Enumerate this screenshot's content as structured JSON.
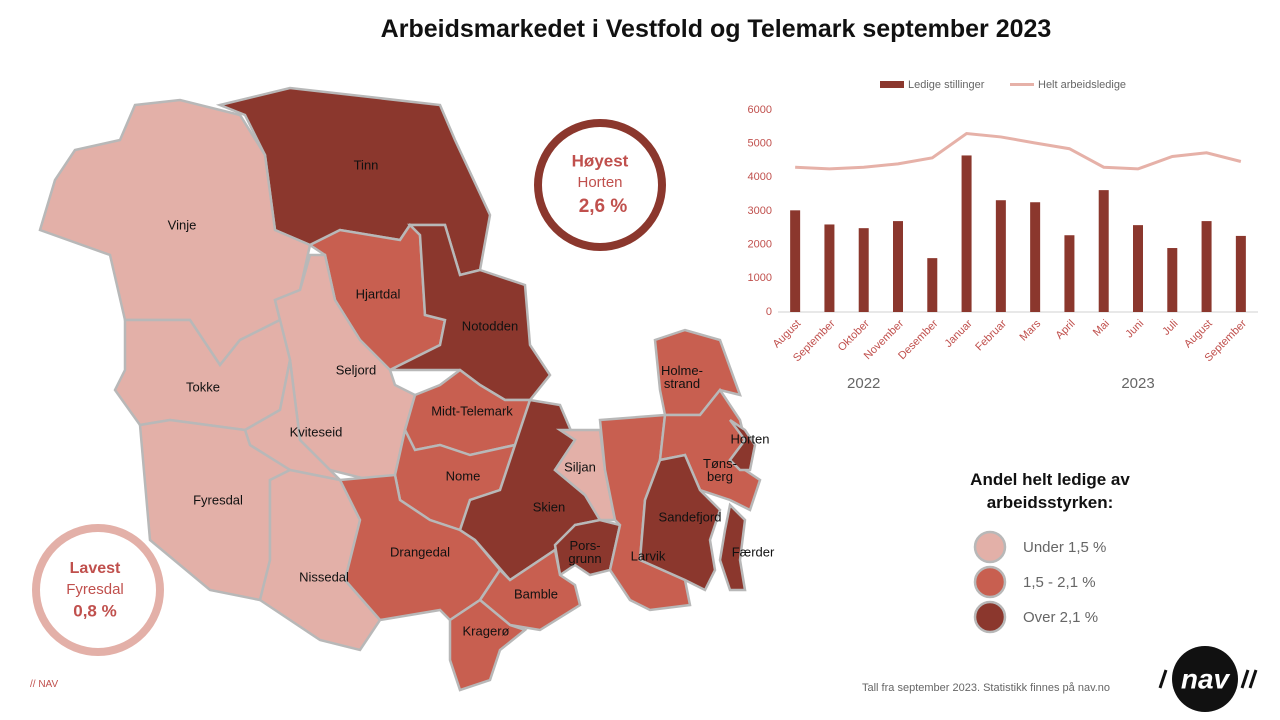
{
  "title": "Arbeidsmarkedet i Vestfold og Telemark september 2023",
  "chart_data": {
    "type": "combo",
    "categories": [
      "August",
      "September",
      "Oktober",
      "November",
      "Desember",
      "Januar",
      "Februar",
      "Mars",
      "April",
      "Mai",
      "Juni",
      "Juli",
      "August",
      "September"
    ],
    "year_labels": [
      "2022",
      "2023"
    ],
    "series": [
      {
        "name": "Ledige stillinger",
        "type": "bar",
        "color": "#8b372d",
        "values": [
          3020,
          2600,
          2490,
          2700,
          1600,
          4650,
          3320,
          3260,
          2280,
          3620,
          2580,
          1900,
          2700,
          2260
        ]
      },
      {
        "name": "Helt arbeidsledige",
        "type": "line",
        "color": "#e6b1a8",
        "values": [
          4300,
          4250,
          4300,
          4400,
          4580,
          5300,
          5200,
          5020,
          4850,
          4300,
          4250,
          4620,
          4730,
          4470
        ]
      }
    ],
    "ylim": [
      0,
      6000
    ],
    "yticks": [
      0,
      1000,
      2000,
      3000,
      4000,
      5000,
      6000
    ],
    "legend": "top"
  },
  "map": {
    "regions": [
      {
        "name": "Tinn",
        "color": "#8b372d"
      },
      {
        "name": "Vinje",
        "color": "#e3b0a8"
      },
      {
        "name": "Hjartdal",
        "color": "#c85f50"
      },
      {
        "name": "Notodden",
        "color": "#8b372d"
      },
      {
        "name": "Seljord",
        "color": "#e3b0a8"
      },
      {
        "name": "Tokke",
        "color": "#e3b0a8"
      },
      {
        "name": "Kviteseid",
        "color": "#e3b0a8"
      },
      {
        "name": "Fyresdal",
        "color": "#e3b0a8"
      },
      {
        "name": "Nissedal",
        "color": "#e3b0a8"
      },
      {
        "name": "Midt-Telemark",
        "color": "#c85f50"
      },
      {
        "name": "Nome",
        "color": "#c85f50"
      },
      {
        "name": "Drangedal",
        "color": "#c85f50"
      },
      {
        "name": "Skien",
        "color": "#8b372d"
      },
      {
        "name": "Siljan",
        "color": "#e3b0a8"
      },
      {
        "name": "Pors-grunn",
        "color": "#8b372d"
      },
      {
        "name": "Bamble",
        "color": "#c85f50"
      },
      {
        "name": "Kragerø",
        "color": "#c85f50"
      },
      {
        "name": "Larvik",
        "color": "#c85f50"
      },
      {
        "name": "Holme-strand",
        "color": "#c85f50"
      },
      {
        "name": "Tøns-berg",
        "color": "#c85f50"
      },
      {
        "name": "Horten",
        "color": "#8b372d"
      },
      {
        "name": "Sandefjord",
        "color": "#8b372d"
      },
      {
        "name": "Færder",
        "color": "#8b372d"
      }
    ],
    "legend": {
      "title": "Andel helt ledige av arbeidsstyrken:",
      "items": [
        {
          "label": "Under 1,5 %",
          "color": "#e3b0a8"
        },
        {
          "label": "1,5 - 2,1 %",
          "color": "#c85f50"
        },
        {
          "label": "Over 2,1 %",
          "color": "#8b372d"
        }
      ]
    }
  },
  "highest": {
    "label": "Høyest",
    "place": "Horten",
    "value": "2,6 %"
  },
  "lowest": {
    "label": "Lavest",
    "place": "Fyresdal",
    "value": "0,8 %"
  },
  "credit": "// NAV",
  "source": "Tall fra september 2023. Statistikk finnes på nav.no",
  "logo": "nav"
}
